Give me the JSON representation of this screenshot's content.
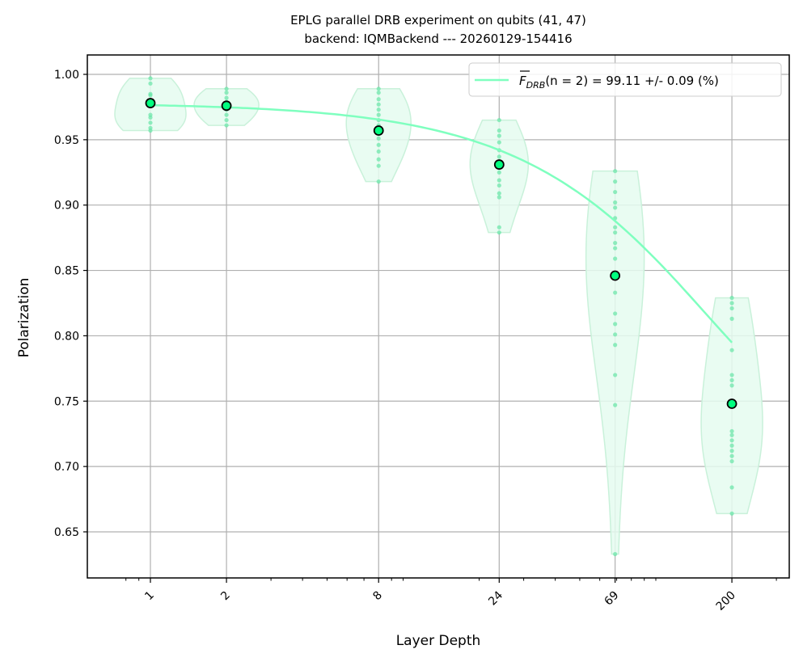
{
  "chart_data": {
    "type": "violin+line",
    "title": "EPLG parallel DRB experiment on qubits (41, 47)",
    "subtitle": "backend: IQMBackend --- 20260129-154416",
    "xlabel": "Layer Depth",
    "ylabel": "Polarization",
    "xscale": "log",
    "xlim": [
      0.78,
      240
    ],
    "ylim": [
      0.615,
      1.015
    ],
    "grid": true,
    "legend_position": "upper right",
    "x_ticks": [
      "1",
      "2",
      "8",
      "24",
      "69",
      "200"
    ],
    "y_ticks": [
      "0.65",
      "0.70",
      "0.75",
      "0.80",
      "0.85",
      "0.90",
      "0.95",
      "1.00"
    ],
    "legend": {
      "label_prefix": "F",
      "label_sub": "DRB",
      "label_rest": "(n = 2) = 99.11 +/- 0.09 (%)"
    },
    "colors": {
      "fit": "#7fffbf",
      "mean_marker": "#00ff7f",
      "violin_fill": "#e5fcf0",
      "violin_edge": "#c9f1da",
      "points": "#66e6a6"
    },
    "x": [
      1,
      2,
      8,
      24,
      69,
      200
    ],
    "mean_values": [
      0.978,
      0.976,
      0.957,
      0.931,
      0.846,
      0.748
    ],
    "fit_curve": {
      "F_DRB_percent": 99.11,
      "uncertainty_percent": 0.09,
      "n": 2
    },
    "violins": [
      {
        "x": 1,
        "min": 0.957,
        "max": 0.997,
        "points": [
          0.997,
          0.993,
          0.985,
          0.984,
          0.978,
          0.969,
          0.967,
          0.963,
          0.959,
          0.957
        ]
      },
      {
        "x": 2,
        "min": 0.961,
        "max": 0.989,
        "points": [
          0.989,
          0.986,
          0.982,
          0.979,
          0.976,
          0.973,
          0.969,
          0.965,
          0.961
        ]
      },
      {
        "x": 8,
        "min": 0.918,
        "max": 0.989,
        "points": [
          0.989,
          0.986,
          0.981,
          0.977,
          0.973,
          0.969,
          0.965,
          0.961,
          0.955,
          0.951,
          0.946,
          0.941,
          0.935,
          0.93,
          0.918
        ]
      },
      {
        "x": 24,
        "min": 0.879,
        "max": 0.965,
        "points": [
          0.965,
          0.957,
          0.953,
          0.948,
          0.942,
          0.937,
          0.933,
          0.929,
          0.925,
          0.919,
          0.915,
          0.909,
          0.906,
          0.883,
          0.879
        ]
      },
      {
        "x": 69,
        "min": 0.633,
        "max": 0.926,
        "points": [
          0.926,
          0.918,
          0.91,
          0.902,
          0.898,
          0.89,
          0.883,
          0.879,
          0.871,
          0.867,
          0.859,
          0.848,
          0.833,
          0.817,
          0.809,
          0.801,
          0.793,
          0.77,
          0.747,
          0.633
        ]
      },
      {
        "x": 200,
        "min": 0.664,
        "max": 0.829,
        "points": [
          0.829,
          0.825,
          0.821,
          0.813,
          0.789,
          0.77,
          0.766,
          0.762,
          0.749,
          0.727,
          0.724,
          0.72,
          0.716,
          0.712,
          0.708,
          0.704,
          0.684,
          0.664
        ]
      }
    ]
  }
}
